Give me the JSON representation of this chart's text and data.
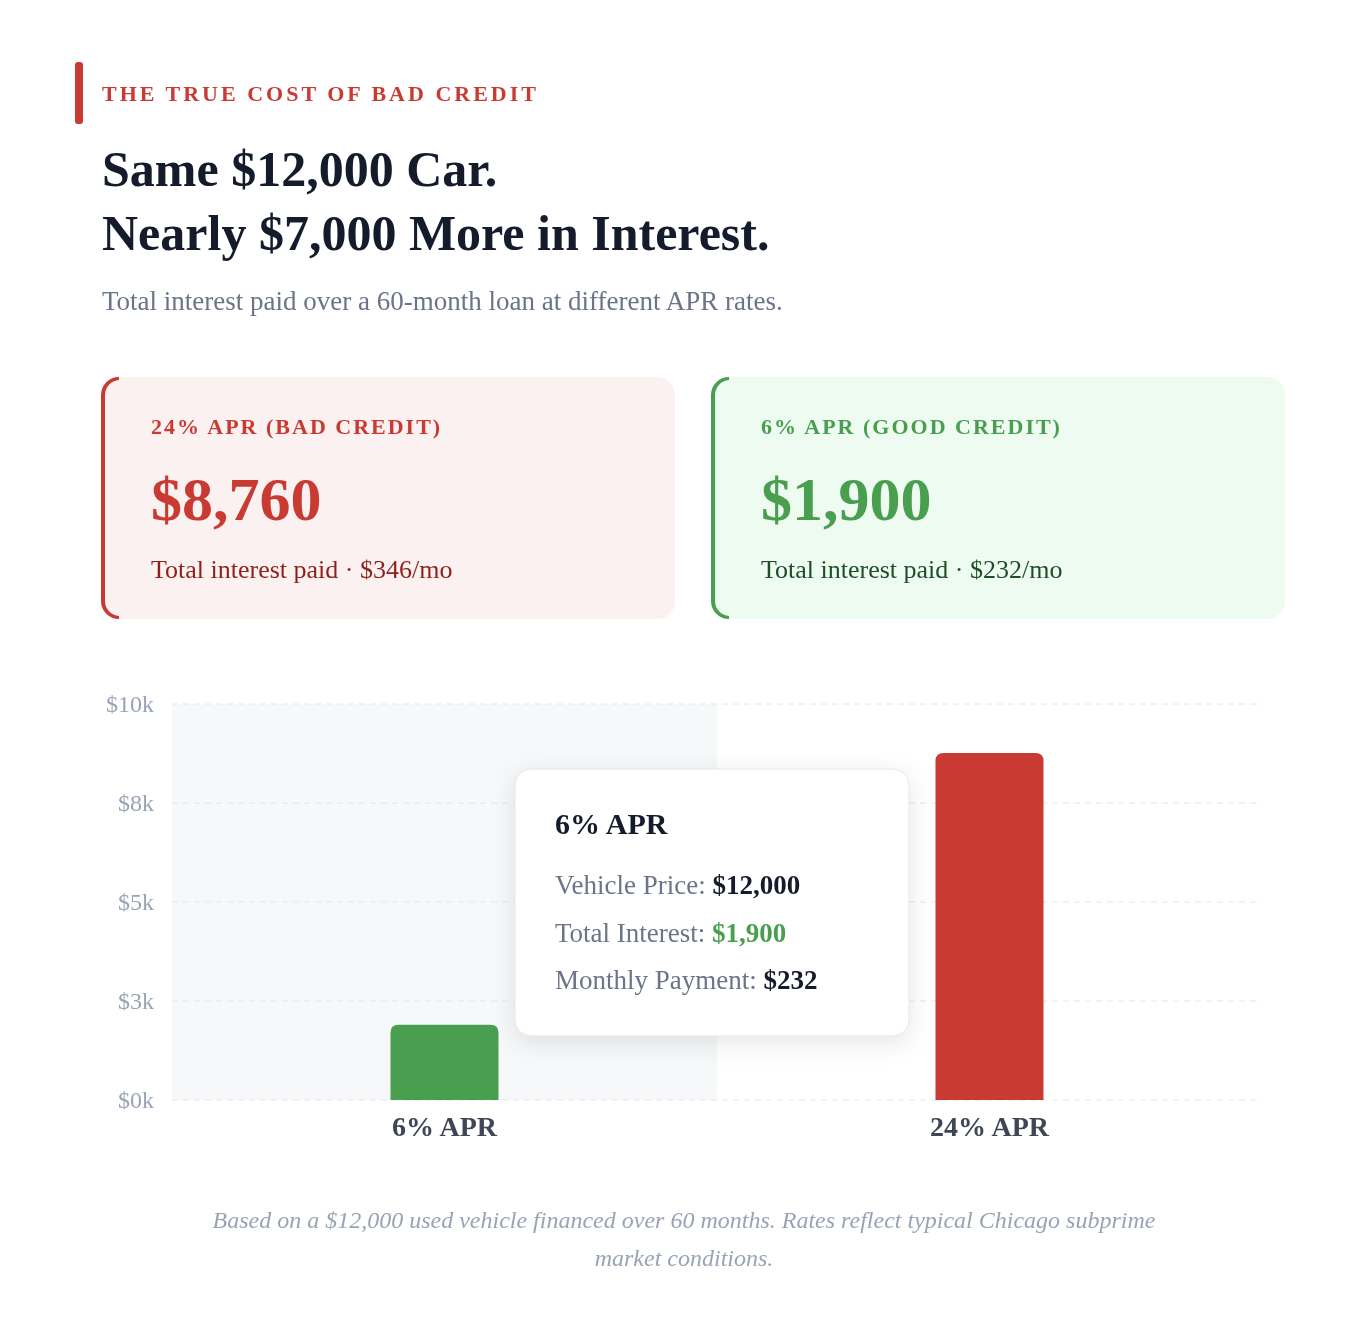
{
  "chart_data": {
    "type": "bar",
    "title": "Same $12,000 Car.\nNearly $7,000 More in Interest.",
    "subtitle": "Total interest paid over a 60-month loan at different APR rates.",
    "categories": [
      "6% APR",
      "24% APR"
    ],
    "values": [
      1900,
      8760
    ],
    "colors": [
      "#4a9e50",
      "#c93a32"
    ],
    "ylim": [
      0,
      10000
    ],
    "yticks": [
      {
        "value": 0,
        "label": "$0k"
      },
      {
        "value": 2500,
        "label": "$3k"
      },
      {
        "value": 5000,
        "label": "$5k"
      },
      {
        "value": 7500,
        "label": "$8k"
      },
      {
        "value": 10000,
        "label": "$10k"
      }
    ],
    "grid": "y",
    "bands": [
      {
        "axis": "x",
        "from": "6% APR",
        "to": "6% APR",
        "color": "#f7f8fa"
      }
    ],
    "annotations": [
      "THE TRUE COST OF BAD CREDIT",
      "24% APR (BAD CREDIT)",
      "$8,760",
      "Total interest paid · $346/mo",
      "6% APR (GOOD CREDIT)",
      "$1,900",
      "Total interest paid · $232/mo",
      "6% APR",
      "Vehicle Price: $12,000",
      "Total Interest: $1,900",
      "Monthly Payment: $232",
      "Based on a $12,000 used vehicle financed over 60 months. Rates reflect typical Chicago subprime market conditions."
    ]
  }
}
